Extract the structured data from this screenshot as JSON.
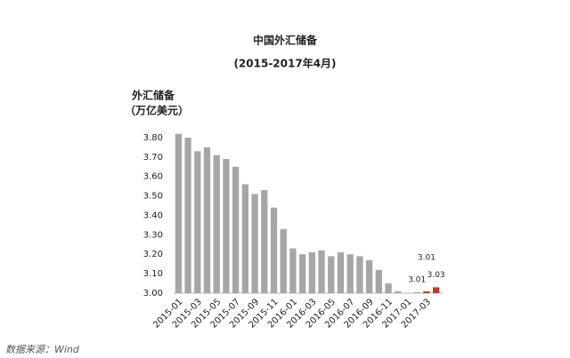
{
  "chart_data": {
    "type": "bar",
    "title": "中国外汇储备",
    "subtitle": "(2015-2017年4月)",
    "y_label": [
      "外汇储备",
      "（万亿美元）"
    ],
    "source": "数据来源：Wind",
    "categories": [
      "2015-01",
      null,
      "2015-03",
      null,
      "2015-05",
      null,
      "2015-07",
      null,
      "2015-09",
      null,
      "2015-11",
      null,
      "2016-01",
      null,
      "2016-03",
      null,
      "2016-05",
      null,
      "2016-07",
      null,
      "2016-09",
      null,
      "2016-11",
      null,
      "2017-01",
      null,
      "2017-03",
      null
    ],
    "values": [
      3.82,
      3.8,
      3.73,
      3.75,
      3.71,
      3.69,
      3.65,
      3.56,
      3.51,
      3.53,
      3.44,
      3.33,
      3.23,
      3.2,
      3.21,
      3.22,
      3.19,
      3.21,
      3.2,
      3.19,
      3.17,
      3.12,
      3.05,
      3.01,
      3.0,
      3.005,
      3.009,
      3.03
    ],
    "value_labels": [
      null,
      null,
      null,
      null,
      null,
      null,
      null,
      null,
      null,
      null,
      null,
      null,
      null,
      null,
      null,
      null,
      null,
      null,
      null,
      null,
      null,
      null,
      null,
      null,
      null,
      "3.01",
      "3.01",
      "3.03"
    ],
    "colors": [
      "#a6a6a6",
      "#a6a6a6",
      "#a6a6a6",
      "#a6a6a6",
      "#a6a6a6",
      "#a6a6a6",
      "#a6a6a6",
      "#a6a6a6",
      "#a6a6a6",
      "#a6a6a6",
      "#a6a6a6",
      "#a6a6a6",
      "#a6a6a6",
      "#a6a6a6",
      "#a6a6a6",
      "#a6a6a6",
      "#a6a6a6",
      "#a6a6a6",
      "#a6a6a6",
      "#a6a6a6",
      "#a6a6a6",
      "#a6a6a6",
      "#a6a6a6",
      "#a6a6a6",
      "#a6a6a6",
      "#a6a6a6",
      "#c0392b",
      "#c0392b"
    ],
    "ylim": [
      3.0,
      3.85
    ],
    "yticks": [
      {
        "value": 3.0,
        "label": "3.00"
      },
      {
        "value": 3.1,
        "label": "3.10"
      },
      {
        "value": 3.2,
        "label": "3.20"
      },
      {
        "value": 3.3,
        "label": "3.30"
      },
      {
        "value": 3.4,
        "label": "3.40"
      },
      {
        "value": 3.5,
        "label": "3.50"
      },
      {
        "value": 3.6,
        "label": "3.60"
      },
      {
        "value": 3.7,
        "label": "3.70"
      },
      {
        "value": 3.8,
        "label": "3.80"
      }
    ],
    "grid": false
  }
}
